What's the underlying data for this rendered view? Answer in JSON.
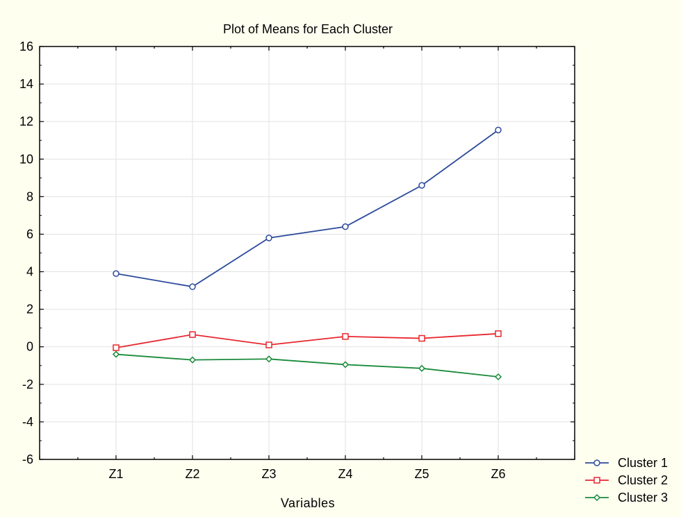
{
  "chart_data": {
    "type": "line",
    "title": "Plot of Means for Each Cluster",
    "xlabel": "Variables",
    "ylabel": "",
    "categories": [
      "Z1",
      "Z2",
      "Z3",
      "Z4",
      "Z5",
      "Z6"
    ],
    "ylim": [
      -6,
      16
    ],
    "yticks": [
      "-6",
      "-4",
      "-2",
      "0",
      "2",
      "4",
      "6",
      "8",
      "10",
      "12",
      "14",
      "16"
    ],
    "grid": true,
    "legend_position": "bottom-right outside",
    "series": [
      {
        "name": "Cluster 1",
        "color": "#2C4A9B",
        "marker": "circle",
        "values": [
          3.9,
          3.2,
          5.8,
          6.4,
          8.6,
          11.55
        ]
      },
      {
        "name": "Cluster 2",
        "color": "#E8262E",
        "marker": "square",
        "values": [
          -0.05,
          0.65,
          0.1,
          0.55,
          0.45,
          0.7
        ]
      },
      {
        "name": "Cluster 3",
        "color": "#1A8A3A",
        "marker": "diamond",
        "values": [
          -0.4,
          -0.7,
          -0.65,
          -0.95,
          -1.15,
          -1.6
        ]
      }
    ]
  }
}
